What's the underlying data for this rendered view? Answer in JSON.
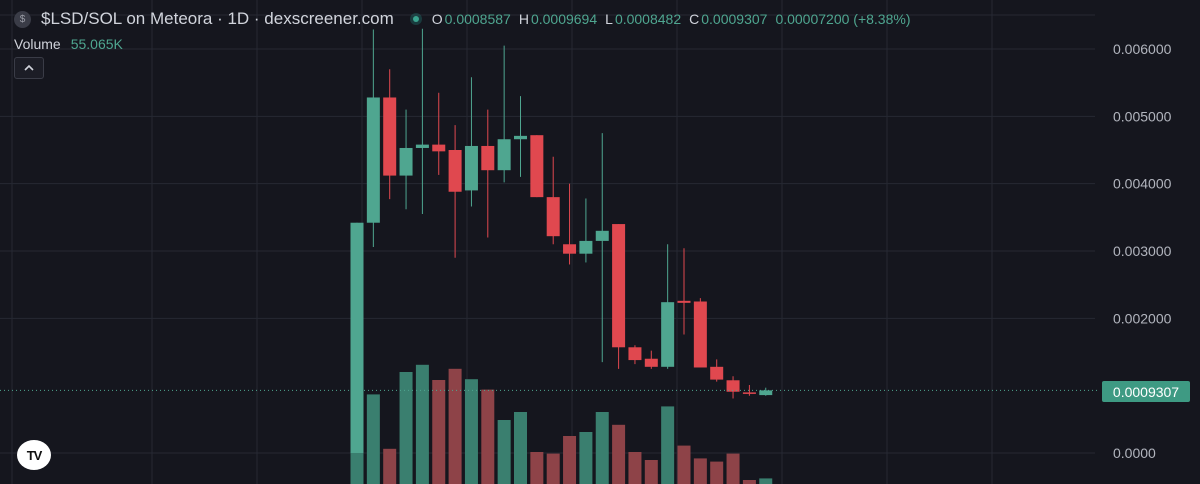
{
  "header": {
    "symbol_badge": "$",
    "title": "$LSD/SOL on Meteora · 1D · dexscreener.com",
    "ohlc": [
      {
        "key": "O",
        "value": "0.0008587"
      },
      {
        "key": "H",
        "value": "0.0009694"
      },
      {
        "key": "L",
        "value": "0.0008482"
      },
      {
        "key": "C",
        "value": "0.0009307"
      }
    ],
    "change": "0.00007200 (+8.38%)"
  },
  "volume": {
    "label": "Volume",
    "value": "55.065K"
  },
  "collapse_icon": "chevron-up-icon",
  "last_price_label": "0.0009307",
  "logo_text": "TV",
  "colors": {
    "background": "#15161e",
    "grid": "#262833",
    "up": "#4fa690",
    "down": "#e0484f",
    "volume_up": "#3a7f6f",
    "volume_down": "#8e4348"
  },
  "chart_data": {
    "type": "candlestick",
    "ylim": [
      -0.0,
      0.0064
    ],
    "y_ticks": [
      "0.006000",
      "0.005000",
      "0.004000",
      "0.003000",
      "0.002000",
      "0.0000"
    ],
    "y_tick_values": [
      0.006,
      0.005,
      0.004,
      0.003,
      0.002,
      0.0
    ],
    "last_price": 0.0009307,
    "candles": [
      {
        "o": 0.0,
        "h": 0.00342,
        "l": 0.0,
        "c": 0.00342,
        "v": 15.0
      },
      {
        "o": 0.00342,
        "h": 0.00629,
        "l": 0.00306,
        "c": 0.00528,
        "v": 11.2
      },
      {
        "o": 0.00528,
        "h": 0.0057,
        "l": 0.00377,
        "c": 0.00412,
        "v": 4.4
      },
      {
        "o": 0.00412,
        "h": 0.0051,
        "l": 0.00362,
        "c": 0.00453,
        "v": 14.0
      },
      {
        "o": 0.00453,
        "h": 0.0063,
        "l": 0.00355,
        "c": 0.00458,
        "v": 14.9
      },
      {
        "o": 0.00458,
        "h": 0.00535,
        "l": 0.00413,
        "c": 0.00448,
        "v": 13.0
      },
      {
        "o": 0.0045,
        "h": 0.00487,
        "l": 0.0029,
        "c": 0.00388,
        "v": 14.4
      },
      {
        "o": 0.0039,
        "h": 0.00558,
        "l": 0.00366,
        "c": 0.00456,
        "v": 13.1
      },
      {
        "o": 0.00456,
        "h": 0.0051,
        "l": 0.0032,
        "c": 0.0042,
        "v": 11.8
      },
      {
        "o": 0.0042,
        "h": 0.00605,
        "l": 0.00402,
        "c": 0.00466,
        "v": 8.0
      },
      {
        "o": 0.00466,
        "h": 0.0053,
        "l": 0.0041,
        "c": 0.00471,
        "v": 9.0
      },
      {
        "o": 0.00472,
        "h": 0.00472,
        "l": 0.0038,
        "c": 0.0038,
        "v": 4.0
      },
      {
        "o": 0.0038,
        "h": 0.0044,
        "l": 0.0031,
        "c": 0.00322,
        "v": 3.8
      },
      {
        "o": 0.0031,
        "h": 0.004,
        "l": 0.0028,
        "c": 0.00296,
        "v": 6.0
      },
      {
        "o": 0.00296,
        "h": 0.00378,
        "l": 0.00283,
        "c": 0.00315,
        "v": 6.5
      },
      {
        "o": 0.00315,
        "h": 0.00475,
        "l": 0.00135,
        "c": 0.0033,
        "v": 9.0
      },
      {
        "o": 0.0034,
        "h": 0.0034,
        "l": 0.00125,
        "c": 0.00157,
        "v": 7.4
      },
      {
        "o": 0.00157,
        "h": 0.0016,
        "l": 0.00132,
        "c": 0.00138,
        "v": 4.0
      },
      {
        "o": 0.0014,
        "h": 0.00152,
        "l": 0.00125,
        "c": 0.00128,
        "v": 3.0
      },
      {
        "o": 0.00128,
        "h": 0.0031,
        "l": 0.00125,
        "c": 0.00224,
        "v": 9.7
      },
      {
        "o": 0.00226,
        "h": 0.00304,
        "l": 0.00176,
        "c": 0.00223,
        "v": 4.8
      },
      {
        "o": 0.00225,
        "h": 0.0023,
        "l": 0.00127,
        "c": 0.00127,
        "v": 3.2
      },
      {
        "o": 0.00128,
        "h": 0.00139,
        "l": 0.00106,
        "c": 0.00109,
        "v": 2.8
      },
      {
        "o": 0.00108,
        "h": 0.00114,
        "l": 0.00081,
        "c": 0.00091,
        "v": 3.8
      },
      {
        "o": 0.0009,
        "h": 0.00101,
        "l": 0.00085,
        "c": 0.00088,
        "v": 0.5
      },
      {
        "o": 0.00086,
        "h": 0.00097,
        "l": 0.00085,
        "c": 0.00093,
        "v": 0.7
      }
    ]
  }
}
